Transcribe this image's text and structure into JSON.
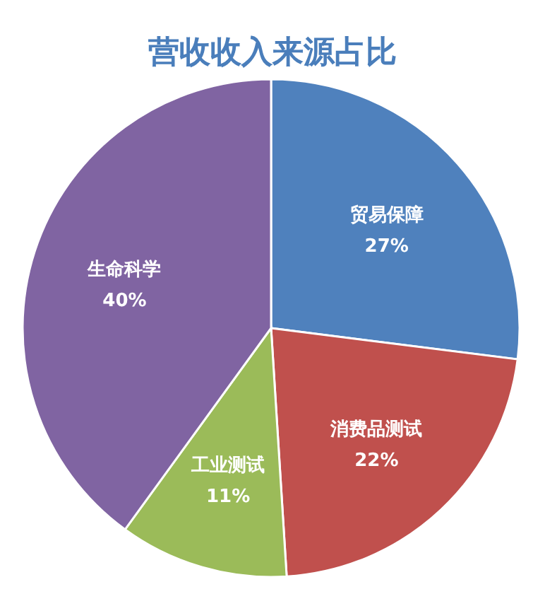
{
  "chart_data": {
    "type": "pie",
    "title": "营收收入来源占比",
    "categories": [
      "贸易保障",
      "消费品测试",
      "工业测试",
      "生命科学"
    ],
    "values": [
      27,
      22,
      11,
      40
    ],
    "colors": [
      "#4f81bd",
      "#c0504d",
      "#9bbb59",
      "#8064a2"
    ],
    "value_labels": [
      "27%",
      "22%",
      "11%",
      "40%"
    ]
  }
}
